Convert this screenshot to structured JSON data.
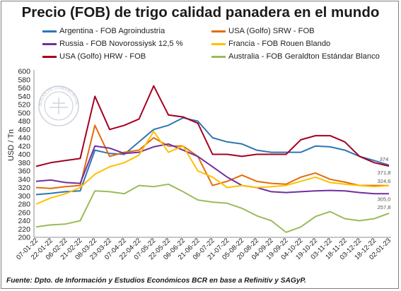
{
  "chart_data": {
    "type": "line",
    "title": "Precio (FOB) de trigo calidad panadera en el mundo",
    "ylabel": "USD / Tn",
    "xlabel": "",
    "ylim": [
      200,
      600
    ],
    "yticks": [
      200,
      220,
      240,
      260,
      280,
      300,
      320,
      340,
      360,
      380,
      400,
      420,
      440,
      460,
      480,
      500,
      520,
      540,
      560,
      580,
      600
    ],
    "grid": false,
    "legend_position": "top",
    "x": [
      "07-01-22",
      "22-01-22",
      "06-02-22",
      "21-02-22",
      "08-03-22",
      "23-03-22",
      "07-04-22",
      "22-04-22",
      "07-05-22",
      "22-05-22",
      "06-06-22",
      "21-06-22",
      "06-07-22",
      "21-07-22",
      "05-08-22",
      "20-08-22",
      "04-09-22",
      "19-09-22",
      "04-10-22",
      "19-10-22",
      "03-11-22",
      "18-11-22",
      "03-12-22",
      "18-12-22",
      "02-01-23"
    ],
    "series": [
      {
        "name": "Argentina - FOB Agroindustria",
        "color": "#2e75b6",
        "values": [
          303,
          306,
          310,
          312,
          410,
          402,
          400,
          430,
          460,
          470,
          488,
          480,
          440,
          430,
          425,
          410,
          405,
          405,
          405,
          420,
          418,
          410,
          395,
          385,
          374
        ]
      },
      {
        "name": "USA (Golfo) SRW - FOB",
        "color": "#e46c0a",
        "values": [
          320,
          318,
          322,
          325,
          470,
          395,
          405,
          410,
          440,
          420,
          420,
          395,
          325,
          335,
          350,
          335,
          330,
          328,
          345,
          355,
          340,
          333,
          325,
          325,
          324.6
        ]
      },
      {
        "name": "Russia - FOB Novorossiysk 12,5 %",
        "color": "#7030a0",
        "values": [
          335,
          338,
          332,
          330,
          420,
          415,
          402,
          405,
          418,
          425,
          410,
          395,
          370,
          345,
          325,
          320,
          310,
          308,
          310,
          312,
          313,
          312,
          308,
          305,
          305.0
        ]
      },
      {
        "name": "Francia - FOB Rouen Blando",
        "color": "#ffc000",
        "values": [
          280,
          295,
          305,
          320,
          352,
          370,
          380,
          398,
          455,
          405,
          420,
          360,
          345,
          320,
          325,
          320,
          322,
          325,
          335,
          345,
          332,
          328,
          325,
          322,
          324.6
        ]
      },
      {
        "name": "USA (Golfo) HRW - FOB",
        "color": "#a50021",
        "values": [
          371,
          380,
          385,
          390,
          540,
          460,
          470,
          485,
          565,
          495,
          490,
          475,
          400,
          400,
          395,
          400,
          400,
          400,
          435,
          445,
          445,
          430,
          395,
          380,
          371.8
        ]
      },
      {
        "name": "Australia - FOB Geraldton Estándar Blanco",
        "color": "#9bbb59",
        "values": [
          225,
          230,
          232,
          240,
          312,
          310,
          305,
          325,
          322,
          328,
          310,
          290,
          285,
          282,
          270,
          252,
          240,
          212,
          225,
          250,
          262,
          245,
          240,
          245,
          257.8
        ]
      }
    ],
    "end_labels": [
      "374",
      "371,8",
      "324,6",
      "305,0",
      "257,8"
    ],
    "watermark": "BOLSA DE COMERCIO DE ROSARIO"
  },
  "source": "Fuente: Dpto. de Información y Estudios Económicos BCR en base a Refinitiv y SAGyP."
}
